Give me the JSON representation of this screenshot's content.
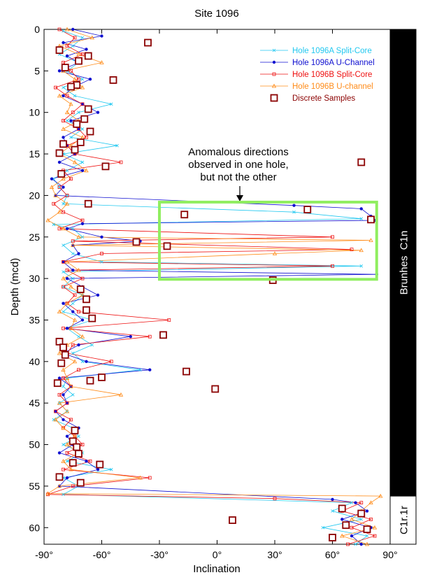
{
  "chart_data": {
    "type": "line",
    "title": "Site 1096",
    "xlabel": "Inclination",
    "ylabel": "Depth (mcd)",
    "xlim": [
      -90,
      90
    ],
    "ylim": [
      0,
      62
    ],
    "y_inverted": true,
    "xticks": [
      {
        "value": -90,
        "label": "-90°"
      },
      {
        "value": -60,
        "label": "-60°"
      },
      {
        "value": -30,
        "label": "-30°"
      },
      {
        "value": 0,
        "label": "0°"
      },
      {
        "value": 30,
        "label": "30°"
      },
      {
        "value": 60,
        "label": "60°"
      },
      {
        "value": 90,
        "label": "90°"
      }
    ],
    "yticks": [
      0,
      5,
      10,
      15,
      20,
      25,
      30,
      35,
      40,
      45,
      50,
      55,
      60
    ],
    "legend": "upper right",
    "series": [
      {
        "name": "Hole 1096A Split-Core",
        "color": "#22c8f0",
        "marker": "x",
        "depth": [
          0.2,
          1,
          2,
          3,
          4,
          5,
          6,
          7,
          8,
          9,
          10,
          11,
          12,
          13,
          14,
          15,
          16,
          17,
          18,
          19,
          20,
          21,
          22,
          22.8,
          23.5,
          24,
          25,
          26,
          27,
          28,
          28.5,
          29.2,
          30,
          31,
          32,
          33,
          34,
          35,
          36,
          37,
          38,
          39,
          40,
          41,
          42,
          43,
          44,
          45,
          46,
          47,
          48,
          49,
          50,
          51,
          52,
          53,
          54,
          55,
          56,
          57,
          58,
          59,
          60,
          61,
          62
        ],
        "values": [
          -80,
          -70,
          -75,
          -82,
          -72,
          -78,
          -70,
          -80,
          -74,
          -55,
          -72,
          -78,
          -70,
          -76,
          -52,
          -80,
          -70,
          -78,
          -85,
          -82,
          -78,
          -80,
          40,
          75,
          -85,
          -75,
          -70,
          -80,
          -75,
          -60,
          75,
          -80,
          -75,
          -80,
          -70,
          -75,
          -80,
          -65,
          -78,
          -72,
          -65,
          -75,
          -70,
          -40,
          -78,
          -80,
          -75,
          -82,
          -78,
          -85,
          -75,
          -72,
          -80,
          -70,
          -78,
          -55,
          -80,
          -72,
          -80,
          70,
          60,
          75,
          55,
          78,
          72
        ]
      },
      {
        "name": "Hole 1096A U-Channel",
        "color": "#1010d0",
        "marker": "dot",
        "depth": [
          0,
          0.8,
          1.6,
          2.4,
          3.2,
          4,
          5,
          6,
          7,
          8,
          9,
          10,
          11,
          12,
          13,
          14,
          15,
          16,
          17,
          18,
          19,
          20,
          21.2,
          21.6,
          22.5,
          23,
          23.4,
          24,
          25,
          25.5,
          26,
          27,
          28,
          29,
          29.5,
          30,
          31,
          32,
          33,
          34,
          35,
          36,
          37,
          38,
          39,
          40,
          41,
          42,
          43,
          44,
          45,
          46,
          47,
          48,
          49,
          50,
          51,
          52,
          53,
          54,
          55,
          56.6,
          57,
          58,
          59,
          60,
          61,
          62
        ],
        "values": [
          -75,
          -60,
          -80,
          -68,
          -78,
          -72,
          -82,
          -66,
          -75,
          -80,
          -70,
          -62,
          -76,
          -72,
          -80,
          -78,
          -74,
          -82,
          -70,
          -86,
          -80,
          -84,
          40,
          75,
          80,
          82,
          -70,
          -78,
          -60,
          -40,
          -75,
          -72,
          -80,
          -75,
          83,
          -78,
          -70,
          -62,
          -80,
          -75,
          -70,
          -78,
          -45,
          -72,
          -80,
          -68,
          -35,
          -82,
          -76,
          -80,
          -78,
          -84,
          -80,
          -72,
          -78,
          -75,
          -82,
          -68,
          -62,
          -78,
          -82,
          60,
          72,
          78,
          65,
          80,
          70,
          75
        ]
      },
      {
        "name": "Hole 1096B Split-Core",
        "color": "#ee1111",
        "marker": "square",
        "depth": [
          0,
          1,
          2,
          3,
          4,
          5,
          6,
          7,
          8,
          9,
          10,
          11,
          12,
          13,
          14,
          15,
          16,
          17,
          18,
          19,
          20,
          21,
          22,
          23,
          24,
          25,
          25.5,
          26.5,
          27,
          28,
          28.5,
          29,
          30,
          31,
          32,
          33,
          34,
          35,
          36,
          37,
          38,
          39,
          40,
          41,
          42,
          43,
          44,
          45,
          46,
          47,
          48,
          49,
          50,
          51,
          52,
          53,
          54,
          55,
          56,
          56.5,
          57,
          58,
          59,
          60,
          61,
          62
        ],
        "values": [
          -82,
          -74,
          -78,
          -70,
          -80,
          -76,
          -72,
          -84,
          -78,
          -70,
          -75,
          -80,
          -72,
          -68,
          -78,
          -74,
          -50,
          -80,
          -76,
          -82,
          -78,
          -85,
          -80,
          -70,
          -82,
          60,
          -75,
          70,
          -60,
          -80,
          60,
          -78,
          -70,
          -80,
          -74,
          -78,
          -72,
          -25,
          -80,
          -35,
          -75,
          -78,
          -55,
          -72,
          -80,
          -76,
          -82,
          -78,
          -84,
          -76,
          -80,
          -74,
          -70,
          -78,
          -66,
          -80,
          -35,
          -75,
          -88,
          30,
          75,
          65,
          80,
          70,
          82,
          68
        ]
      },
      {
        "name": "Hole 1096B U-channel",
        "color": "#ff8c1a",
        "marker": "triangle",
        "depth": [
          0,
          1,
          2,
          3,
          4,
          5,
          6,
          7,
          8,
          9,
          10,
          11,
          12,
          13,
          14,
          15,
          16,
          17,
          18,
          19,
          20,
          21,
          22,
          23,
          24,
          25,
          25.4,
          26,
          26.6,
          27,
          28,
          29,
          30,
          31,
          32,
          33,
          34,
          35,
          36,
          37,
          38,
          39,
          40,
          41,
          42,
          43,
          44,
          45,
          46,
          47,
          48,
          49,
          50,
          51,
          52,
          53,
          54,
          55,
          55.9,
          56.2,
          57,
          58,
          59,
          60,
          61,
          62
        ],
        "values": [
          -78,
          -65,
          -82,
          -72,
          -60,
          -80,
          -74,
          -70,
          -82,
          -76,
          -78,
          -72,
          -80,
          -70,
          -76,
          -82,
          -74,
          -68,
          -80,
          -86,
          -84,
          -78,
          -82,
          -88,
          -80,
          -72,
          80,
          -75,
          75,
          30,
          -78,
          -72,
          -80,
          -76,
          -70,
          -78,
          -82,
          -74,
          -76,
          -70,
          -78,
          -82,
          -74,
          -80,
          -78,
          -76,
          -50,
          -82,
          -78,
          -84,
          -80,
          -74,
          -78,
          -72,
          -80,
          -76,
          -40,
          -82,
          -88,
          85,
          80,
          75,
          70,
          82,
          65,
          78
        ]
      },
      {
        "name": "Discrete Samples",
        "color": "#8b0000",
        "marker": "open-square",
        "line": false,
        "depth": [
          1.6,
          2.5,
          3.2,
          3.8,
          4.6,
          6.1,
          6.7,
          6.9,
          9.6,
          10.8,
          11.4,
          12.3,
          13.6,
          13.8,
          14.9,
          14.5,
          16.5,
          17.4,
          21.0,
          16.0,
          21.7,
          22.3,
          22.9,
          25.6,
          26.1,
          30.2,
          31.3,
          32.5,
          33.8,
          34.8,
          36.8,
          37.6,
          38.3,
          39.2,
          40.2,
          41.9,
          41.2,
          42.6,
          42.3,
          43.3,
          48.3,
          49.6,
          50.3,
          51.1,
          52.2,
          52.4,
          53.9,
          54.6,
          57.7,
          59.1,
          58.3,
          59.7,
          61.2,
          60.2
        ],
        "values": [
          -36,
          -82,
          -67,
          -72,
          -79,
          -54,
          -73,
          -76,
          -67,
          -69,
          -73,
          -66,
          -71,
          -80,
          -82,
          -74,
          -58,
          -81,
          -67,
          75,
          47,
          -17,
          80,
          -42,
          -26,
          29,
          -71,
          -68,
          -68,
          -65,
          -28,
          -82,
          -80,
          -79,
          -81,
          -60,
          -16,
          -83,
          -66,
          -1,
          -74,
          -75,
          -73,
          -72,
          -75,
          -61,
          -82,
          -71,
          65,
          8,
          75,
          67,
          60,
          78
        ]
      }
    ],
    "highlight_box": {
      "xlim": [
        -30,
        83
      ],
      "ylim": [
        20.8,
        30.1
      ],
      "color": "#90ee60"
    },
    "annotation": [
      "Anomalous directions",
      "observed in one hole,",
      "but not the other"
    ],
    "chrons": [
      {
        "name": "Brunhes  C1n",
        "top": 0,
        "bottom": 56.2,
        "color": "#000000"
      },
      {
        "name": "C1r.1r",
        "top": 56.2,
        "bottom": 62,
        "color": "#ffffff"
      }
    ]
  }
}
